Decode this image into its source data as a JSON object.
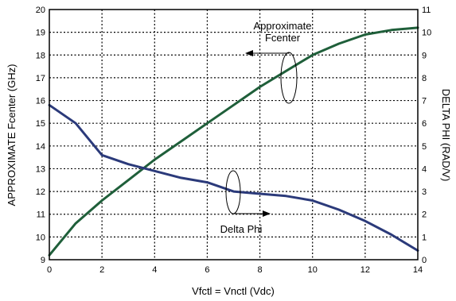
{
  "chart_data": {
    "type": "line",
    "x": [
      0,
      1,
      2,
      3,
      4,
      5,
      6,
      7,
      8,
      9,
      10,
      11,
      12,
      13,
      14
    ],
    "xlabel": "Vfctl = Vnctl (Vdc)",
    "xlim": [
      0,
      14
    ],
    "xticks": [
      0,
      2,
      4,
      6,
      8,
      10,
      12,
      14
    ],
    "ylabel_left": "APPROXIMATE Fcenter (GHz)",
    "ylim_left": [
      9,
      20
    ],
    "yticks_left": [
      9,
      10,
      11,
      12,
      13,
      14,
      15,
      16,
      17,
      18,
      19,
      20
    ],
    "ylabel_right": "DELTA PHI (RAD/V)",
    "ylim_right": [
      0,
      11
    ],
    "yticks_right": [
      0,
      1,
      2,
      3,
      4,
      5,
      6,
      7,
      8,
      9,
      10,
      11
    ],
    "grid": true,
    "grid_style": "dotted",
    "series": [
      {
        "name": "Approximate Fcenter",
        "axis": "left",
        "color": "#1f5f3a",
        "values": [
          9.2,
          10.6,
          11.6,
          12.5,
          13.4,
          14.2,
          15.0,
          15.8,
          16.6,
          17.3,
          18.0,
          18.5,
          18.9,
          19.1,
          19.2
        ]
      },
      {
        "name": "Delta Phi",
        "axis": "right",
        "color": "#2b3a7a",
        "values": [
          6.8,
          6.0,
          4.6,
          4.2,
          3.9,
          3.6,
          3.4,
          3.0,
          2.9,
          2.8,
          2.6,
          2.2,
          1.7,
          1.1,
          0.4
        ]
      }
    ],
    "annotations": {
      "fcenter": [
        "Approximate",
        "Fcenter"
      ],
      "deltaphi": "Delta Phi"
    }
  }
}
